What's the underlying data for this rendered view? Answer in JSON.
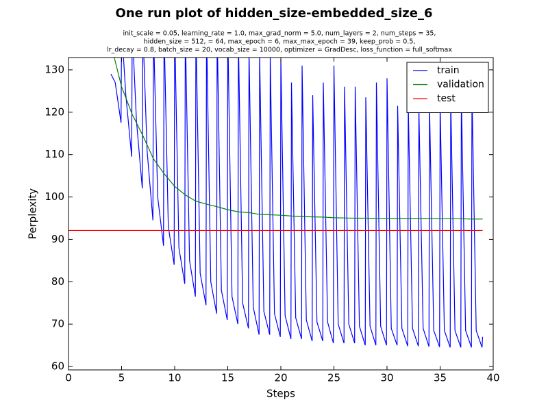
{
  "chart_data": {
    "type": "line",
    "title": "One run plot of hidden_size-embedded_size_6",
    "subtitle": [
      "init_scale = 0.05, learning_rate = 1.0, max_grad_norm = 5.0, num_layers = 2, num_steps = 35,",
      "hidden_size = 512,    = 64, max_epoch = 6, max_max_epoch = 39, keep_prob = 0.5,",
      "lr_decay = 0.8, batch_size = 20, vocab_size = 10000, optimizer = GradDesc, loss_function = full_softmax"
    ],
    "xlabel": "Steps",
    "ylabel": "Perplexity",
    "xlim": [
      0,
      40
    ],
    "xticks": [
      0,
      5,
      10,
      15,
      20,
      25,
      30,
      35,
      40
    ],
    "ylim": [
      59.2,
      132.9
    ],
    "yticks": [
      60,
      70,
      80,
      90,
      100,
      110,
      120,
      130
    ],
    "legend": "upper right",
    "series": [
      {
        "name": "train",
        "color": "#0000ff",
        "x": [
          4,
          4.4,
          4.95,
          5,
          5.4,
          5.95,
          6,
          6.4,
          6.95,
          7,
          7.4,
          7.95,
          8,
          8.4,
          8.95,
          9,
          9.4,
          9.95,
          10,
          10.4,
          10.95,
          11,
          11.4,
          11.95,
          12,
          12.4,
          12.95,
          13,
          13.4,
          13.95,
          14,
          14.4,
          14.95,
          15,
          15.4,
          15.95,
          16,
          16.4,
          16.95,
          17,
          17.4,
          17.95,
          18,
          18.4,
          18.95,
          19,
          19.4,
          19.95,
          20,
          20.4,
          20.95,
          21,
          21.4,
          21.95,
          22,
          22.4,
          22.95,
          23,
          23.4,
          23.95,
          24,
          24.4,
          24.95,
          25,
          25.4,
          25.95,
          26,
          26.4,
          26.95,
          27,
          27.4,
          27.95,
          28,
          28.4,
          28.95,
          29,
          29.4,
          29.95,
          30,
          30.4,
          30.95,
          31,
          31.4,
          31.95,
          32,
          32.4,
          32.95,
          33,
          33.4,
          33.95,
          34,
          34.4,
          34.95,
          35,
          35.4,
          35.95,
          36,
          36.4,
          36.95,
          37,
          37.4,
          37.95,
          38,
          38.4,
          38.95,
          39
        ],
        "values": [
          129,
          127,
          117.5,
          140,
          124,
          109.5,
          140,
          118,
          102,
          140,
          111,
          94.5,
          140,
          100,
          88.5,
          140,
          93,
          84,
          140,
          88,
          79.5,
          140,
          85,
          76.5,
          140,
          82,
          74.5,
          140,
          80,
          72.5,
          140,
          78,
          71,
          140,
          76.5,
          70,
          138,
          75,
          69,
          135,
          74,
          67.5,
          134,
          73,
          67.5,
          133,
          72.5,
          67,
          132.5,
          72,
          66.5,
          127,
          71.5,
          66.5,
          131,
          71,
          66,
          124,
          70.5,
          66,
          127,
          70.5,
          65.5,
          131,
          70,
          65.5,
          126,
          70,
          65.5,
          126,
          69.5,
          65,
          123.5,
          69.5,
          65,
          127,
          69.5,
          65,
          128,
          69,
          65,
          121.5,
          69,
          64.8,
          122,
          69,
          64.8,
          121,
          69,
          64.7,
          122,
          68.5,
          64.6,
          122,
          68.5,
          64.5,
          123,
          68.5,
          64.5,
          124,
          68.5,
          64.5,
          125,
          68.5,
          64.5,
          67
        ]
      },
      {
        "name": "validation",
        "color": "#008000",
        "x": [
          4,
          5,
          6,
          7,
          8,
          9,
          10,
          11,
          12,
          13,
          14,
          15,
          16,
          17,
          18,
          19,
          20,
          21,
          22,
          23,
          24,
          25,
          26,
          27,
          28,
          29,
          30,
          31,
          32,
          33,
          34,
          35,
          36,
          37,
          38,
          39
        ],
        "values": [
          136,
          126,
          119.5,
          114.5,
          109,
          105.5,
          102.5,
          100.5,
          99,
          98.3,
          97.7,
          97,
          96.5,
          96.3,
          95.9,
          95.8,
          95.7,
          95.5,
          95.4,
          95.3,
          95.25,
          95.1,
          95.05,
          95.0,
          95.0,
          94.95,
          94.95,
          94.9,
          94.9,
          94.9,
          94.9,
          94.85,
          94.85,
          94.85,
          94.8,
          94.8
        ]
      },
      {
        "name": "test",
        "color": "#ff0000",
        "x": [
          0,
          39
        ],
        "values": [
          92.1,
          92.1
        ]
      }
    ]
  }
}
